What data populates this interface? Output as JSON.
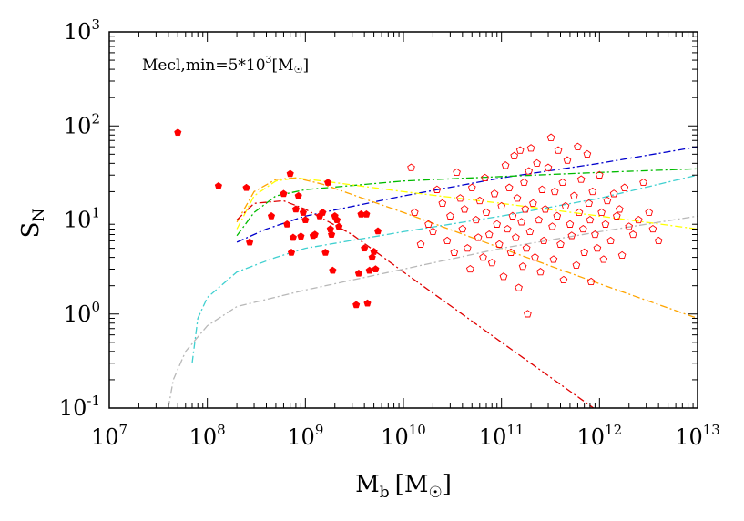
{
  "chart_data": {
    "type": "scatter",
    "x_scale": "log",
    "y_scale": "log",
    "xlim": [
      10000000,
      10000000000000
    ],
    "ylim": [
      0.1,
      1000
    ],
    "grid": false,
    "legend": "none",
    "xlabel": {
      "base": "M",
      "sub": "b",
      "unit": "[M",
      "sun": "☉",
      "close": "]"
    },
    "ylabel": {
      "base": "S",
      "sub": "N"
    },
    "annotation": {
      "text": "Mecl,min=5*10",
      "sup": "3",
      "unit": "[M",
      "sun": "☉",
      "close": "]"
    },
    "x_ticks": [
      {
        "value": 10000000,
        "base": "10",
        "exp": "7"
      },
      {
        "value": 100000000,
        "base": "10",
        "exp": "8"
      },
      {
        "value": 1000000000,
        "base": "10",
        "exp": "9"
      },
      {
        "value": 10000000000,
        "base": "10",
        "exp": "10"
      },
      {
        "value": 100000000000,
        "base": "10",
        "exp": "11"
      },
      {
        "value": 1000000000000,
        "base": "10",
        "exp": "12"
      },
      {
        "value": 10000000000000,
        "base": "10",
        "exp": "13"
      }
    ],
    "y_ticks": [
      {
        "value": 0.1,
        "base": "10",
        "exp": "-1"
      },
      {
        "value": 1,
        "base": "10",
        "exp": "0"
      },
      {
        "value": 10,
        "base": "10",
        "exp": "1"
      },
      {
        "value": 100,
        "base": "10",
        "exp": "2"
      },
      {
        "value": 1000,
        "base": "10",
        "exp": "3"
      }
    ],
    "dwarf_points": {
      "color": "#ff0000",
      "marker": "filled-pentagon",
      "points": [
        [
          50000000,
          85
        ],
        [
          130000000,
          23
        ],
        [
          250000000,
          22
        ],
        [
          270000000,
          5.8
        ],
        [
          450000000,
          11
        ],
        [
          600000000,
          19
        ],
        [
          650000000,
          9
        ],
        [
          700000000,
          31
        ],
        [
          720000000,
          4.5
        ],
        [
          750000000,
          6.5
        ],
        [
          800000000,
          13
        ],
        [
          850000000,
          18
        ],
        [
          900000000,
          6.7
        ],
        [
          950000000,
          12
        ],
        [
          1000000000,
          10
        ],
        [
          1200000000,
          6.8
        ],
        [
          1250000000,
          7
        ],
        [
          1400000000,
          11
        ],
        [
          1500000000,
          12
        ],
        [
          1600000000,
          4.5
        ],
        [
          1700000000,
          25
        ],
        [
          1800000000,
          8
        ],
        [
          1850000000,
          7
        ],
        [
          1900000000,
          2.9
        ],
        [
          2000000000,
          11
        ],
        [
          2100000000,
          10
        ],
        [
          2200000000,
          8.5
        ],
        [
          3300000000,
          1.25
        ],
        [
          3500000000,
          2.7
        ],
        [
          3700000000,
          11.5
        ],
        [
          4000000000,
          5
        ],
        [
          4200000000,
          11.5
        ],
        [
          4300000000,
          1.3
        ],
        [
          4500000000,
          2.9
        ],
        [
          4800000000,
          4
        ],
        [
          5000000000,
          4.6
        ],
        [
          5200000000,
          3
        ],
        [
          5500000000,
          7.6
        ]
      ]
    },
    "giant_points": {
      "color": "#ff0000",
      "marker": "open-pentagon",
      "points": [
        [
          12000000000,
          36
        ],
        [
          13000000000,
          12
        ],
        [
          15000000000,
          5.5
        ],
        [
          18000000000,
          9
        ],
        [
          20000000000,
          7.5
        ],
        [
          22000000000,
          21
        ],
        [
          25000000000,
          15
        ],
        [
          28000000000,
          6
        ],
        [
          30000000000,
          11
        ],
        [
          33000000000,
          4.5
        ],
        [
          35000000000,
          32
        ],
        [
          38000000000,
          17
        ],
        [
          40000000000,
          8
        ],
        [
          42000000000,
          13
        ],
        [
          45000000000,
          5
        ],
        [
          48000000000,
          3
        ],
        [
          50000000000,
          22
        ],
        [
          55000000000,
          10
        ],
        [
          58000000000,
          6.5
        ],
        [
          60000000000,
          16
        ],
        [
          65000000000,
          4
        ],
        [
          68000000000,
          28
        ],
        [
          70000000000,
          12
        ],
        [
          75000000000,
          7
        ],
        [
          80000000000,
          3.5
        ],
        [
          85000000000,
          19
        ],
        [
          90000000000,
          9
        ],
        [
          95000000000,
          5.5
        ],
        [
          100000000000,
          14
        ],
        [
          105000000000,
          2.5
        ],
        [
          110000000000,
          38
        ],
        [
          115000000000,
          8
        ],
        [
          120000000000,
          22
        ],
        [
          125000000000,
          4.5
        ],
        [
          130000000000,
          11
        ],
        [
          135000000000,
          48
        ],
        [
          140000000000,
          6.5
        ],
        [
          145000000000,
          17
        ],
        [
          150000000000,
          1.9
        ],
        [
          155000000000,
          55
        ],
        [
          160000000000,
          9.5
        ],
        [
          165000000000,
          3.2
        ],
        [
          170000000000,
          25
        ],
        [
          175000000000,
          13
        ],
        [
          180000000000,
          5
        ],
        [
          185000000000,
          1.0
        ],
        [
          190000000000,
          33
        ],
        [
          195000000000,
          7.5
        ],
        [
          200000000000,
          58
        ],
        [
          210000000000,
          15
        ],
        [
          220000000000,
          4
        ],
        [
          230000000000,
          40
        ],
        [
          240000000000,
          10
        ],
        [
          250000000000,
          2.8
        ],
        [
          260000000000,
          21
        ],
        [
          270000000000,
          6
        ],
        [
          280000000000,
          13
        ],
        [
          300000000000,
          36
        ],
        [
          320000000000,
          75
        ],
        [
          330000000000,
          8.5
        ],
        [
          340000000000,
          3.8
        ],
        [
          350000000000,
          20
        ],
        [
          370000000000,
          11
        ],
        [
          380000000000,
          55
        ],
        [
          400000000000,
          5.5
        ],
        [
          420000000000,
          25
        ],
        [
          430000000000,
          2.3
        ],
        [
          450000000000,
          14
        ],
        [
          470000000000,
          43
        ],
        [
          500000000000,
          9
        ],
        [
          520000000000,
          6.8
        ],
        [
          550000000000,
          18
        ],
        [
          580000000000,
          3.3
        ],
        [
          600000000000,
          60
        ],
        [
          620000000000,
          12
        ],
        [
          650000000000,
          27
        ],
        [
          680000000000,
          8
        ],
        [
          700000000000,
          4.5
        ],
        [
          750000000000,
          50
        ],
        [
          780000000000,
          15
        ],
        [
          800000000000,
          10
        ],
        [
          820000000000,
          2.2
        ],
        [
          850000000000,
          20
        ],
        [
          900000000000,
          7
        ],
        [
          950000000000,
          5
        ],
        [
          1000000000000,
          30
        ],
        [
          1050000000000,
          12
        ],
        [
          1100000000000,
          3.8
        ],
        [
          1150000000000,
          9
        ],
        [
          1200000000000,
          16
        ],
        [
          1300000000000,
          6
        ],
        [
          1400000000000,
          19
        ],
        [
          1500000000000,
          11
        ],
        [
          1600000000000,
          13
        ],
        [
          1700000000000,
          4.2
        ],
        [
          1800000000000,
          22
        ],
        [
          2000000000000,
          8.5
        ],
        [
          2200000000000,
          7
        ],
        [
          2500000000000,
          10
        ],
        [
          2800000000000,
          25
        ],
        [
          3200000000000,
          12
        ],
        [
          3500000000000,
          8
        ],
        [
          4000000000000,
          6
        ]
      ]
    },
    "series": [
      {
        "color": "#0000cc",
        "dash": "8,3,2,3",
        "points": [
          [
            200000000,
            5.8
          ],
          [
            400000000,
            8
          ],
          [
            1000000000,
            11
          ],
          [
            10000000000,
            18
          ],
          [
            100000000000,
            28
          ],
          [
            1000000000000,
            40
          ],
          [
            10000000000000,
            60
          ]
        ]
      },
      {
        "color": "#00bb00",
        "dash": "8,3,2,3",
        "points": [
          [
            200000000,
            6.8
          ],
          [
            300000000,
            12
          ],
          [
            500000000,
            18
          ],
          [
            1000000000,
            21
          ],
          [
            10000000000,
            26
          ],
          [
            100000000000,
            29
          ],
          [
            1000000000000,
            32
          ],
          [
            10000000000000,
            35
          ]
        ]
      },
      {
        "color": "#ffff00",
        "dash": "8,3,2,3",
        "points": [
          [
            200000000,
            8
          ],
          [
            300000000,
            18
          ],
          [
            500000000,
            26
          ],
          [
            800000000,
            28
          ],
          [
            1500000000,
            26
          ],
          [
            10000000000,
            20
          ],
          [
            100000000000,
            15
          ],
          [
            1000000000000,
            11
          ],
          [
            10000000000000,
            8
          ]
        ]
      },
      {
        "color": "#ffa500",
        "dash": "8,3,2,3",
        "points": [
          [
            200000000,
            9.5
          ],
          [
            300000000,
            20
          ],
          [
            500000000,
            27
          ],
          [
            800000000,
            28
          ],
          [
            1500000000,
            24
          ],
          [
            10000000000,
            12
          ],
          [
            100000000000,
            5
          ],
          [
            1000000000000,
            2.1
          ],
          [
            10000000000000,
            0.9
          ]
        ]
      },
      {
        "color": "#e00000",
        "dash": "8,3,2,3",
        "points": [
          [
            200000000,
            10
          ],
          [
            300000000,
            15
          ],
          [
            600000000,
            16
          ],
          [
            1000000000,
            13
          ],
          [
            3000000000,
            7
          ],
          [
            10000000000,
            2.8
          ],
          [
            100000000000,
            0.5
          ],
          [
            1000000000000,
            0.09
          ]
        ]
      },
      {
        "color": "#40d0d0",
        "dash": "8,3,2,3",
        "points": [
          [
            70000000,
            0.3
          ],
          [
            80000000,
            0.9
          ],
          [
            100000000,
            1.5
          ],
          [
            200000000,
            2.8
          ],
          [
            500000000,
            4
          ],
          [
            1000000000,
            5
          ],
          [
            10000000000,
            7.5
          ],
          [
            100000000000,
            11
          ],
          [
            1000000000000,
            17
          ],
          [
            10000000000000,
            30
          ]
        ]
      },
      {
        "color": "#b8b8b8",
        "dash": "8,3,2,3",
        "points": [
          [
            40000000,
            0.1
          ],
          [
            45000000,
            0.2
          ],
          [
            60000000,
            0.4
          ],
          [
            100000000,
            0.75
          ],
          [
            200000000,
            1.2
          ],
          [
            1000000000,
            1.8
          ],
          [
            10000000000,
            3
          ],
          [
            100000000000,
            5
          ],
          [
            1000000000000,
            7.5
          ],
          [
            10000000000000,
            11
          ]
        ]
      }
    ]
  }
}
